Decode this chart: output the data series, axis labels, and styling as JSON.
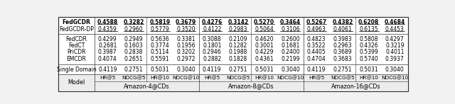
{
  "col_headers_top": [
    "Model",
    "Amazon-4@CDs",
    "Amazon-8@CDs",
    "Amazon-16@CDs"
  ],
  "col_headers_sub": [
    "HR@5",
    "NDCG@5",
    "HR@10",
    "NDCG@10"
  ],
  "rows": [
    [
      "Single Domain",
      "0.4119",
      "0.2751",
      "0.5031",
      "0.3040",
      "0.4119",
      "0.2751",
      "0.5031",
      "0.3040",
      "0.4119",
      "0.2751",
      "0.5031",
      "0.3040"
    ],
    [
      "EMCDR",
      "0.4074",
      "0.2651",
      "0.5591",
      "0.2972",
      "0.2882",
      "0.1828",
      "0.4361",
      "0.2199",
      "0.4704",
      "0.3683",
      "0.5740",
      "0.3937"
    ],
    [
      "PriCDR",
      "0.3987",
      "0.2838",
      "0.5114",
      "0.3202",
      "0.2946",
      "0.1988",
      "0.4229",
      "0.2400",
      "0.4405",
      "0.3689",
      "0.5399",
      "0.4011"
    ],
    [
      "FedCT",
      "0.2681",
      "0.1603",
      "0.3774",
      "0.1956",
      "0.1801",
      "0.1282",
      "0.3001",
      "0.1681",
      "0.3522",
      "0.2963",
      "0.4326",
      "0.3219"
    ],
    [
      "FedCDR",
      "0.4299",
      "0.2949",
      "0.5636",
      "0.3381",
      "0.3088",
      "0.2109",
      "0.4620",
      "0.2600",
      "0.4823",
      "0.3983",
      "0.5808",
      "0.4297"
    ],
    [
      "FedGCDR-DP",
      "0.4359",
      "0.2960",
      "0.5779",
      "0.3520",
      "0.4122",
      "0.2983",
      "0.5064",
      "0.3106",
      "0.4963",
      "0.4061",
      "0.6135",
      "0.4453"
    ],
    [
      "FedGCDR",
      "0.4588",
      "0.3282",
      "0.5819",
      "0.3679",
      "0.4276",
      "0.3142",
      "0.5270",
      "0.3464",
      "0.5267",
      "0.4382",
      "0.6208",
      "0.4684"
    ]
  ],
  "bold_row_idx": 6,
  "underline_row_idxs": [
    5,
    6
  ],
  "fontsize": 5.5,
  "header_fontsize": 5.8,
  "bg_color": "#f2f2f2",
  "header_bg": "#dcdcdc"
}
